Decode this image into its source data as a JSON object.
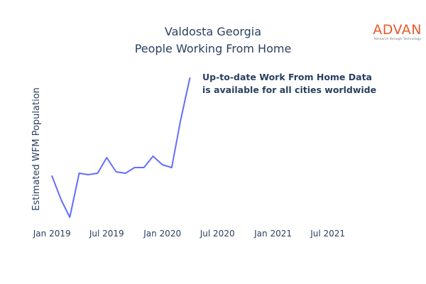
{
  "chart_data": {
    "type": "line",
    "title": [
      "Valdosta Georgia",
      "People Working From Home"
    ],
    "ylabel": "Estimated WFM Population",
    "xlabel": "",
    "x_ticks": [
      {
        "date": "2019-01-01",
        "label": "Jan 2019"
      },
      {
        "date": "2019-07-01",
        "label": "Jul 2019"
      },
      {
        "date": "2020-01-01",
        "label": "Jan 2020"
      },
      {
        "date": "2020-07-01",
        "label": "Jul 2020"
      },
      {
        "date": "2021-01-01",
        "label": "Jan 2021"
      },
      {
        "date": "2021-07-01",
        "label": "Jul 2021"
      }
    ],
    "xlim": [
      "2018-12-01",
      "2021-11-15"
    ],
    "ylim": [
      0,
      1
    ],
    "y_ticks_visible": false,
    "grid": false,
    "line_color": "#636efa",
    "series": [
      {
        "x": [
          "2019-01-01",
          "2019-02-01",
          "2019-03-01",
          "2019-04-01",
          "2019-05-01",
          "2019-06-01",
          "2019-07-01",
          "2019-08-01",
          "2019-09-01",
          "2019-10-01",
          "2019-11-01",
          "2019-12-01",
          "2020-01-01",
          "2020-02-01",
          "2020-03-01",
          "2020-04-01"
        ],
        "values": [
          0.31,
          0.14,
          0.02,
          0.33,
          0.32,
          0.33,
          0.44,
          0.34,
          0.33,
          0.37,
          0.37,
          0.45,
          0.39,
          0.37,
          0.7,
          1.0
        ]
      }
    ],
    "annotation": [
      "Up-to-date Work From Home Data",
      "is available for all cities worldwide"
    ]
  },
  "logo": {
    "text": "ADVAN",
    "tagline": "Research through Technology",
    "color": "#e8592b"
  }
}
